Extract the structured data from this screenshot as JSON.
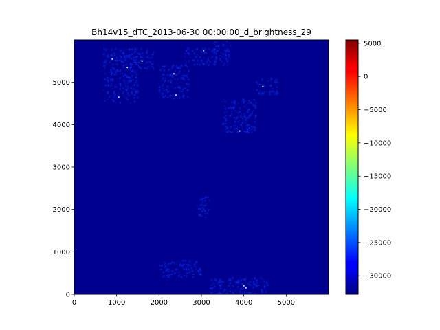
{
  "chart_data": {
    "type": "heatmap",
    "title": "Bh14v15_dTC_2013-06-30 00:00:00_d_brightness_29",
    "xlabel": "",
    "ylabel": "",
    "xlim": [
      0,
      6000
    ],
    "ylim": [
      0,
      6000
    ],
    "x_ticks": [
      0,
      1000,
      2000,
      3000,
      4000,
      5000
    ],
    "y_ticks": [
      0,
      1000,
      2000,
      3000,
      4000,
      5000
    ],
    "x_tick_labels": [
      "0",
      "1000",
      "2000",
      "3000",
      "4000",
      "5000"
    ],
    "y_tick_labels": [
      "0",
      "1000",
      "2000",
      "3000",
      "4000",
      "5000"
    ],
    "colormap": "jet",
    "colorbar": {
      "min": -32768,
      "max": 5500,
      "ticks": [
        5000,
        0,
        -5000,
        -10000,
        -15000,
        -20000,
        -25000,
        -30000
      ],
      "tick_labels": [
        "5000",
        "0",
        "−5000",
        "−10000",
        "−15000",
        "−20000",
        "−25000",
        "−30000"
      ]
    },
    "background_value": -32768,
    "hotspot_regions": [
      {
        "x": [
          700,
          1500
        ],
        "y": [
          4500,
          5800
        ],
        "level": "low"
      },
      {
        "x": [
          1100,
          1900
        ],
        "y": [
          5300,
          5800
        ],
        "level": "low"
      },
      {
        "x": [
          2000,
          2700
        ],
        "y": [
          4600,
          5400
        ],
        "level": "low"
      },
      {
        "x": [
          2600,
          3400
        ],
        "y": [
          5400,
          5800
        ],
        "level": "low"
      },
      {
        "x": [
          3300,
          3700
        ],
        "y": [
          5400,
          6000
        ],
        "level": "low"
      },
      {
        "x": [
          3500,
          4300
        ],
        "y": [
          3800,
          4600
        ],
        "level": "low"
      },
      {
        "x": [
          4300,
          4800
        ],
        "y": [
          4700,
          5100
        ],
        "level": "low"
      },
      {
        "x": [
          2900,
          3200
        ],
        "y": [
          1800,
          2300
        ],
        "level": "low"
      },
      {
        "x": [
          3200,
          4600
        ],
        "y": [
          0,
          400
        ],
        "level": "low"
      },
      {
        "x": [
          2000,
          3000
        ],
        "y": [
          400,
          800
        ],
        "level": "low"
      }
    ],
    "bright_points": [
      [
        900,
        5550
      ],
      [
        1250,
        5350
      ],
      [
        1050,
        4650
      ],
      [
        2350,
        5200
      ],
      [
        1600,
        5500
      ],
      [
        3050,
        5750
      ],
      [
        4450,
        4900
      ],
      [
        3900,
        3850
      ],
      [
        4050,
        150
      ],
      [
        4000,
        200
      ],
      [
        2400,
        4700
      ]
    ]
  }
}
